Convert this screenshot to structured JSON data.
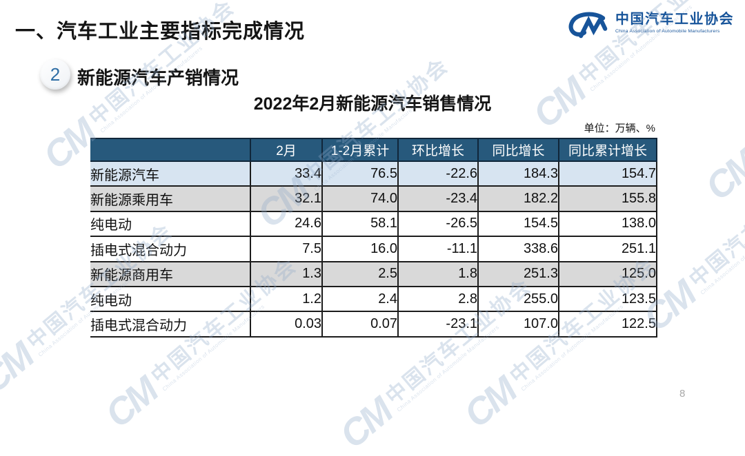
{
  "slide": {
    "title": "一、汽车工业主要指标完成情况",
    "page_number": "8"
  },
  "logo": {
    "mark": "CM",
    "name_cn": "中国汽车工业协会",
    "name_en": "China Association of Automobile Manufacturers"
  },
  "section": {
    "number": "2",
    "title": "新能源汽车产销情况"
  },
  "table_title": "2022年2月新能源汽车销售情况",
  "unit_label": "单位：万辆、%",
  "watermark": {
    "mark": "CM",
    "text_cn": "中国汽车工业协会",
    "text_en": "China Association of Automobile Manufacturers"
  },
  "colors": {
    "header_bg": "#27597C",
    "highlight_row_bg": "#D7E4F1",
    "group_row_bg": "#D9D9D9",
    "border": "#1C1C1C",
    "logo_blue": "#17549A",
    "section_number_blue": "#2F6EA5",
    "watermark_blue": "#8FA9C8",
    "page_number_gray": "#A9A9A9"
  },
  "chart_data": {
    "type": "table",
    "title": "2022年2月新能源汽车销售情况",
    "unit": "万辆、%",
    "columns": [
      "",
      "2月",
      "1-2月累计",
      "环比增长",
      "同比增长",
      "同比累计增长"
    ],
    "rows": [
      {
        "label": "新能源汽车",
        "indent": 0,
        "values": [
          "33.4",
          "76.5",
          "-22.6",
          "184.3",
          "154.7"
        ]
      },
      {
        "label": "新能源乘用车",
        "indent": 1,
        "values": [
          "32.1",
          "74.0",
          "-23.4",
          "182.2",
          "155.8"
        ]
      },
      {
        "label": "纯电动",
        "indent": 2,
        "values": [
          "24.6",
          "58.1",
          "-26.5",
          "154.5",
          "138.0"
        ]
      },
      {
        "label": "插电式混合动力",
        "indent": 2,
        "values": [
          "7.5",
          "16.0",
          "-11.1",
          "338.6",
          "251.1"
        ]
      },
      {
        "label": "新能源商用车",
        "indent": 1,
        "values": [
          "1.3",
          "2.5",
          "1.8",
          "251.3",
          "125.0"
        ]
      },
      {
        "label": "纯电动",
        "indent": 2,
        "values": [
          "1.2",
          "2.4",
          "2.8",
          "255.0",
          "123.5"
        ]
      },
      {
        "label": "插电式混合动力",
        "indent": 2,
        "values": [
          "0.03",
          "0.07",
          "-23.1",
          "107.0",
          "122.5"
        ]
      }
    ]
  }
}
